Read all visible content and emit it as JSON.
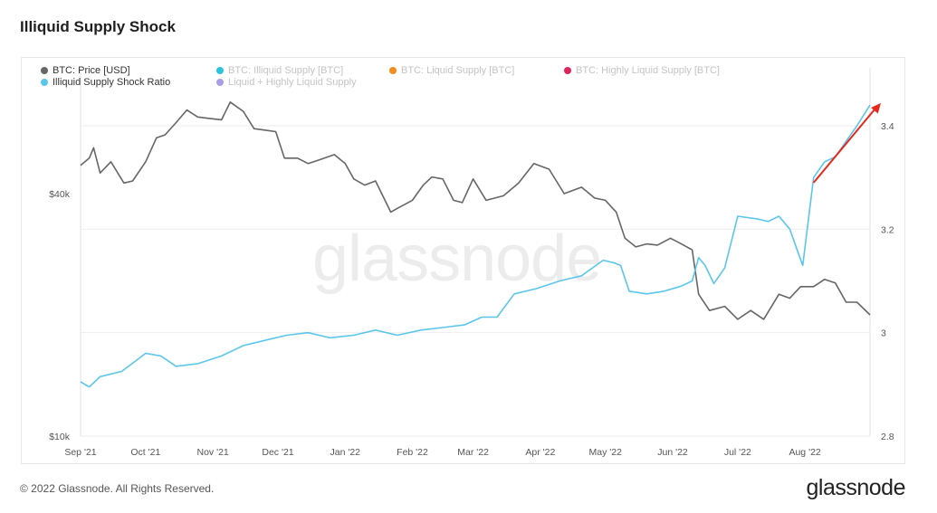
{
  "title": "Illiquid Supply Shock",
  "watermark": "glassnode",
  "footer": {
    "copyright": "© 2022 Glassnode. All Rights Reserved.",
    "brand": "glassnode"
  },
  "legend": [
    {
      "label": "BTC: Price [USD]",
      "color": "#666666",
      "active": true
    },
    {
      "label": "BTC: Illiquid Supply [BTC]",
      "color": "#29c3e0",
      "active": false
    },
    {
      "label": "BTC: Liquid Supply [BTC]",
      "color": "#f28c1c",
      "active": false
    },
    {
      "label": "BTC: Highly Liquid Supply [BTC]",
      "color": "#e0245e",
      "active": false
    },
    {
      "label": "Illiquid Supply Shock Ratio",
      "color": "#5bc6ec",
      "active": true
    },
    {
      "label": "Liquid + Highly Liquid Supply",
      "color": "#a99de6",
      "active": false
    }
  ],
  "chart_data": {
    "type": "line",
    "x_ticks": [
      "Sep '21",
      "Oct '21",
      "Nov '21",
      "Dec '21",
      "Jan '22",
      "Feb '22",
      "Mar '22",
      "Apr '22",
      "May '22",
      "Jun '22",
      "Jul '22",
      "Aug '22"
    ],
    "x_range": [
      "2021-09-01",
      "2022-08-31"
    ],
    "y_left": {
      "scale": "log",
      "ticks": [
        "$10k",
        "$40k"
      ],
      "tick_values": [
        10000,
        40000
      ],
      "range": [
        10000,
        80000
      ]
    },
    "y_right": {
      "scale": "linear",
      "ticks": [
        "2.8",
        "3",
        "3.2",
        "3.4"
      ],
      "tick_values": [
        2.8,
        3.0,
        3.2,
        3.4
      ],
      "range": [
        2.8,
        3.48
      ]
    },
    "grid": "horizontal",
    "series": [
      {
        "name": "BTC: Price [USD]",
        "color": "#666666",
        "axis": "left",
        "x": [
          "2021-09-01",
          "2021-09-05",
          "2021-09-07",
          "2021-09-10",
          "2021-09-15",
          "2021-09-21",
          "2021-09-25",
          "2021-10-01",
          "2021-10-06",
          "2021-10-10",
          "2021-10-15",
          "2021-10-20",
          "2021-10-25",
          "2021-10-30",
          "2021-11-05",
          "2021-11-09",
          "2021-11-15",
          "2021-11-20",
          "2021-11-25",
          "2021-11-30",
          "2021-12-04",
          "2021-12-10",
          "2021-12-15",
          "2021-12-20",
          "2021-12-27",
          "2022-01-01",
          "2022-01-05",
          "2022-01-10",
          "2022-01-15",
          "2022-01-22",
          "2022-01-26",
          "2022-02-01",
          "2022-02-06",
          "2022-02-10",
          "2022-02-15",
          "2022-02-20",
          "2022-02-24",
          "2022-03-01",
          "2022-03-07",
          "2022-03-15",
          "2022-03-22",
          "2022-03-29",
          "2022-04-05",
          "2022-04-12",
          "2022-04-20",
          "2022-04-26",
          "2022-05-01",
          "2022-05-06",
          "2022-05-10",
          "2022-05-15",
          "2022-05-20",
          "2022-05-25",
          "2022-05-31",
          "2022-06-05",
          "2022-06-10",
          "2022-06-13",
          "2022-06-18",
          "2022-06-25",
          "2022-07-01",
          "2022-07-07",
          "2022-07-13",
          "2022-07-20",
          "2022-07-25",
          "2022-07-30",
          "2022-08-05",
          "2022-08-10",
          "2022-08-15",
          "2022-08-20",
          "2022-08-25",
          "2022-08-31"
        ],
        "values": [
          47000,
          49000,
          52000,
          45000,
          48000,
          42500,
          43000,
          48000,
          55000,
          56000,
          60000,
          64500,
          62000,
          61500,
          61000,
          67500,
          64000,
          58000,
          57500,
          57000,
          49000,
          49000,
          47500,
          48500,
          50000,
          47500,
          43500,
          42000,
          43000,
          36000,
          37000,
          38500,
          42000,
          44000,
          43500,
          38500,
          38000,
          43500,
          38500,
          39500,
          42500,
          47500,
          46000,
          40000,
          41500,
          39000,
          38500,
          36000,
          31000,
          29500,
          30000,
          29800,
          31000,
          30000,
          29000,
          22500,
          20500,
          21000,
          19500,
          20500,
          19500,
          22500,
          22000,
          23500,
          23500,
          24500,
          24000,
          21500,
          21500,
          20000
        ]
      },
      {
        "name": "Illiquid Supply Shock Ratio",
        "color": "#5bc6ec",
        "axis": "right",
        "x": [
          "2021-09-01",
          "2021-09-05",
          "2021-09-10",
          "2021-09-20",
          "2021-10-01",
          "2021-10-08",
          "2021-10-15",
          "2021-10-25",
          "2021-11-05",
          "2021-11-15",
          "2021-11-25",
          "2021-12-05",
          "2021-12-15",
          "2021-12-25",
          "2022-01-05",
          "2022-01-15",
          "2022-01-25",
          "2022-02-05",
          "2022-02-15",
          "2022-02-25",
          "2022-03-05",
          "2022-03-12",
          "2022-03-20",
          "2022-03-30",
          "2022-04-10",
          "2022-04-20",
          "2022-04-30",
          "2022-05-05",
          "2022-05-08",
          "2022-05-12",
          "2022-05-20",
          "2022-05-28",
          "2022-06-05",
          "2022-06-10",
          "2022-06-13",
          "2022-06-16",
          "2022-06-20",
          "2022-06-25",
          "2022-07-01",
          "2022-07-10",
          "2022-07-15",
          "2022-07-20",
          "2022-07-25",
          "2022-07-28",
          "2022-07-31",
          "2022-08-05",
          "2022-08-10",
          "2022-08-15",
          "2022-08-20",
          "2022-08-25",
          "2022-08-31"
        ],
        "values": [
          2.905,
          2.895,
          2.915,
          2.925,
          2.96,
          2.955,
          2.935,
          2.94,
          2.955,
          2.975,
          2.985,
          2.995,
          3.0,
          2.99,
          2.995,
          3.005,
          2.995,
          3.005,
          3.01,
          3.015,
          3.03,
          3.03,
          3.075,
          3.085,
          3.1,
          3.11,
          3.14,
          3.135,
          3.13,
          3.08,
          3.075,
          3.08,
          3.09,
          3.1,
          3.145,
          3.13,
          3.095,
          3.125,
          3.225,
          3.22,
          3.215,
          3.225,
          3.2,
          3.165,
          3.13,
          3.3,
          3.33,
          3.34,
          3.37,
          3.4,
          3.44
        ]
      }
    ],
    "annotation": {
      "type": "arrow",
      "color": "#e8261c",
      "from": [
        "2022-08-05",
        3.29
      ],
      "to": [
        "2022-08-31",
        3.43
      ]
    }
  }
}
